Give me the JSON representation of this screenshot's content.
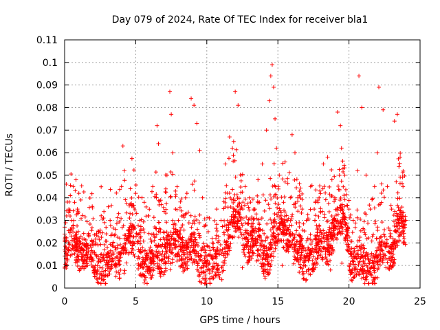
{
  "chart_data": {
    "type": "scatter",
    "title": "Day 079 of 2024, Rate Of TEC Index for receiver bla1",
    "xlabel": "GPS time / hours",
    "ylabel": "ROTI / TECUs",
    "xlim": [
      0,
      25
    ],
    "ylim": [
      0,
      0.11
    ],
    "x_ticks": [
      "0",
      "5",
      "10",
      "15",
      "20",
      "25"
    ],
    "y_ticks": [
      "0",
      "0.01",
      "0.02",
      "0.03",
      "0.04",
      "0.05",
      "0.06",
      "0.07",
      "0.08",
      "0.09",
      "0.1",
      "0.11"
    ],
    "x_tick_values": [
      0,
      5,
      10,
      15,
      20,
      25
    ],
    "y_tick_values": [
      0,
      0.01,
      0.02,
      0.03,
      0.04,
      0.05,
      0.06,
      0.07,
      0.08,
      0.09,
      0.1,
      0.11
    ],
    "grid": true,
    "marker": "plus",
    "series_color": "#ff0000",
    "series": [
      {
        "x": [
          0.0,
          0.1,
          0.2,
          0.3,
          0.4,
          0.5,
          0.6,
          0.7,
          0.8,
          0.9,
          1.0,
          1.1,
          1.2,
          1.4,
          1.6,
          1.8,
          2.0,
          2.2,
          2.4,
          2.6,
          2.8,
          3.0,
          3.2,
          3.4,
          3.6,
          3.8,
          4.0,
          4.1,
          4.2,
          4.4,
          4.6,
          4.8,
          5.0,
          5.3,
          5.6,
          5.9,
          6.2,
          6.5,
          6.6,
          6.8,
          7.0,
          7.2,
          7.4,
          7.5,
          7.6,
          7.8,
          8.0,
          8.3,
          8.6,
          8.9,
          9.1,
          9.3,
          9.5,
          9.7,
          9.9,
          10.1,
          10.4,
          10.7,
          11.0,
          11.3,
          11.6,
          11.8,
          12.0,
          12.2,
          12.4,
          12.7,
          13.0,
          13.3,
          13.6,
          13.9,
          14.2,
          14.4,
          14.5,
          14.6,
          14.7,
          14.8,
          14.9,
          15.1,
          15.4,
          15.7,
          16.0,
          16.2,
          16.4,
          16.7,
          17.0,
          17.3,
          17.6,
          17.9,
          18.2,
          18.5,
          18.8,
          19.0,
          19.2,
          19.4,
          19.7,
          20.0,
          20.3,
          20.6,
          20.7,
          20.9,
          21.2,
          21.5,
          21.8,
          22.0,
          22.1,
          22.4,
          22.7,
          23.0,
          23.2,
          23.4,
          23.6,
          23.8,
          24.0,
          1.3,
          2.5,
          3.5,
          5.5,
          6.0,
          8.2,
          10.5,
          12.5,
          13.5,
          15.3,
          16.5,
          17.5,
          18.7,
          19.5,
          21.0,
          22.6,
          23.1
        ],
        "y": [
          0.027,
          0.018,
          0.012,
          0.035,
          0.041,
          0.03,
          0.045,
          0.038,
          0.048,
          0.035,
          0.042,
          0.02,
          0.015,
          0.012,
          0.01,
          0.014,
          0.009,
          0.02,
          0.025,
          0.015,
          0.029,
          0.018,
          0.03,
          0.02,
          0.026,
          0.033,
          0.045,
          0.063,
          0.052,
          0.022,
          0.033,
          0.028,
          0.042,
          0.03,
          0.038,
          0.032,
          0.045,
          0.072,
          0.064,
          0.037,
          0.034,
          0.05,
          0.087,
          0.077,
          0.06,
          0.035,
          0.03,
          0.028,
          0.042,
          0.084,
          0.081,
          0.073,
          0.061,
          0.04,
          0.028,
          0.025,
          0.02,
          0.035,
          0.03,
          0.055,
          0.067,
          0.062,
          0.087,
          0.081,
          0.05,
          0.045,
          0.04,
          0.035,
          0.048,
          0.055,
          0.07,
          0.083,
          0.094,
          0.099,
          0.089,
          0.075,
          0.062,
          0.05,
          0.038,
          0.03,
          0.068,
          0.06,
          0.04,
          0.035,
          0.03,
          0.045,
          0.03,
          0.04,
          0.055,
          0.058,
          0.048,
          0.04,
          0.078,
          0.072,
          0.05,
          0.035,
          0.03,
          0.052,
          0.094,
          0.08,
          0.05,
          0.035,
          0.045,
          0.06,
          0.089,
          0.079,
          0.045,
          0.035,
          0.074,
          0.077,
          0.058,
          0.045,
          0.03,
          0.015,
          0.012,
          0.01,
          0.006,
          0.008,
          0.013,
          0.011,
          0.009,
          0.012,
          0.01,
          0.007,
          0.014,
          0.008,
          0.011,
          0.012,
          0.009,
          0.01
        ]
      }
    ]
  }
}
